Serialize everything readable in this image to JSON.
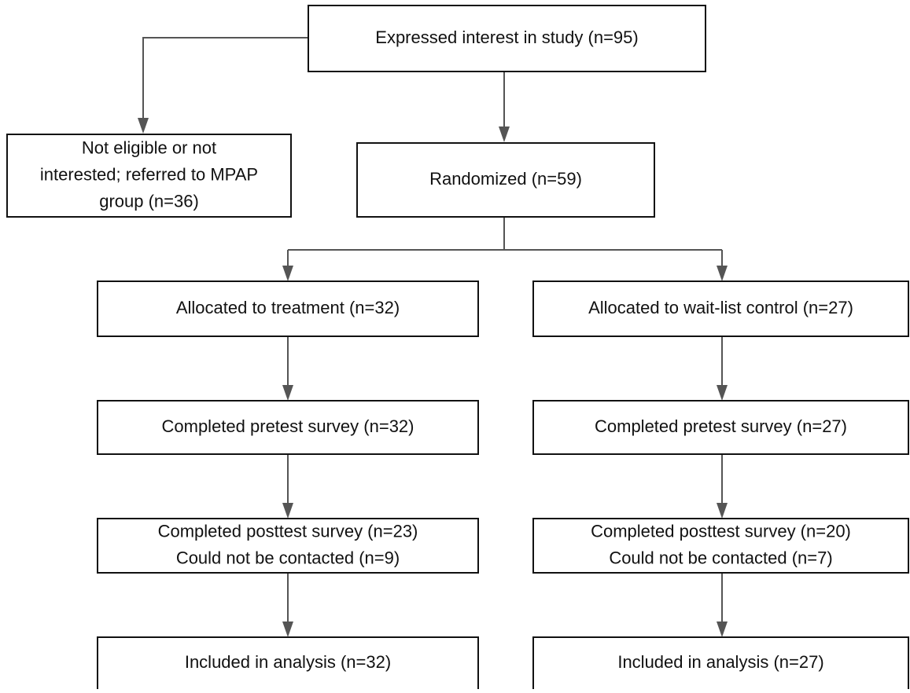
{
  "nodes": [
    {
      "lines": [
        "Expressed interest in study (n=95)"
      ]
    },
    {
      "lines": [
        "Not eligible or not",
        "interested; referred to MPAP",
        "group (n=36)"
      ]
    },
    {
      "lines": [
        "Randomized (n=59)"
      ]
    },
    {
      "lines": [
        "Allocated to treatment (n=32)"
      ]
    },
    {
      "lines": [
        "Allocated to wait-list control (n=27)"
      ]
    },
    {
      "lines": [
        "Completed pretest survey (n=32)"
      ]
    },
    {
      "lines": [
        "Completed pretest survey (n=27)"
      ]
    },
    {
      "lines": [
        "Completed posttest survey (n=23)",
        "Could not be contacted (n=9)"
      ]
    },
    {
      "lines": [
        "Completed posttest survey (n=20)",
        "Could not be contacted (n=7)"
      ]
    },
    {
      "lines": [
        "Included in analysis (n=32)"
      ]
    },
    {
      "lines": [
        "Included in analysis (n=27)"
      ]
    }
  ]
}
